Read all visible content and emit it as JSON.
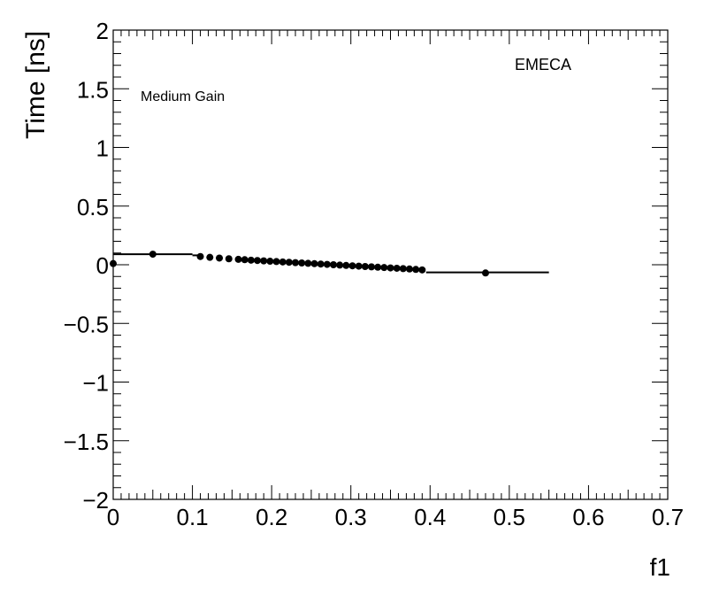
{
  "chart_data": {
    "type": "scatter",
    "title": "",
    "xlabel": "f1",
    "ylabel": "Time [ns]",
    "xlim": [
      0,
      0.7
    ],
    "ylim": [
      -2,
      2
    ],
    "x_ticks": [
      0,
      0.1,
      0.2,
      0.3,
      0.4,
      0.5,
      0.6,
      0.7
    ],
    "x_tick_labels": [
      "0",
      "0.1",
      "0.2",
      "0.3",
      "0.4",
      "0.5",
      "0.6",
      "0.7"
    ],
    "y_ticks": [
      -2,
      -1.5,
      -1,
      -0.5,
      0,
      0.5,
      1,
      1.5,
      2
    ],
    "y_tick_labels": [
      "−2",
      "−1.5",
      "−1",
      "−0.5",
      "0",
      "0.5",
      "1",
      "1.5",
      "2"
    ],
    "grid": false,
    "annotations": [
      {
        "text": "EMECA",
        "x": 0.51,
        "y": 1.68
      },
      {
        "text": "Medium Gain",
        "x": 0.033,
        "y": 1.41
      }
    ],
    "points": [
      {
        "x": 0.0,
        "y": 0.01
      },
      {
        "x": 0.05,
        "y": 0.09
      },
      {
        "x": 0.11,
        "y": 0.07
      },
      {
        "x": 0.122,
        "y": 0.063
      },
      {
        "x": 0.134,
        "y": 0.057
      },
      {
        "x": 0.146,
        "y": 0.051
      },
      {
        "x": 0.158,
        "y": 0.046
      },
      {
        "x": 0.166,
        "y": 0.043
      },
      {
        "x": 0.174,
        "y": 0.039
      },
      {
        "x": 0.182,
        "y": 0.036
      },
      {
        "x": 0.19,
        "y": 0.033
      },
      {
        "x": 0.198,
        "y": 0.03
      },
      {
        "x": 0.206,
        "y": 0.027
      },
      {
        "x": 0.214,
        "y": 0.024
      },
      {
        "x": 0.222,
        "y": 0.021
      },
      {
        "x": 0.23,
        "y": 0.018
      },
      {
        "x": 0.238,
        "y": 0.015
      },
      {
        "x": 0.246,
        "y": 0.012
      },
      {
        "x": 0.254,
        "y": 0.009
      },
      {
        "x": 0.262,
        "y": 0.006
      },
      {
        "x": 0.27,
        "y": 0.003
      },
      {
        "x": 0.278,
        "y": 0.0
      },
      {
        "x": 0.286,
        "y": -0.003
      },
      {
        "x": 0.294,
        "y": -0.006
      },
      {
        "x": 0.302,
        "y": -0.009
      },
      {
        "x": 0.31,
        "y": -0.012
      },
      {
        "x": 0.318,
        "y": -0.015
      },
      {
        "x": 0.326,
        "y": -0.018
      },
      {
        "x": 0.334,
        "y": -0.021
      },
      {
        "x": 0.342,
        "y": -0.024
      },
      {
        "x": 0.35,
        "y": -0.027
      },
      {
        "x": 0.358,
        "y": -0.03
      },
      {
        "x": 0.366,
        "y": -0.033
      },
      {
        "x": 0.374,
        "y": -0.036
      },
      {
        "x": 0.382,
        "y": -0.04
      },
      {
        "x": 0.39,
        "y": -0.044
      },
      {
        "x": 0.47,
        "y": -0.07
      }
    ],
    "segments": [
      {
        "x0": 0.0,
        "x1": 0.1,
        "y": 0.09
      },
      {
        "x0": 0.1,
        "x1": 0.11,
        "y": 0.08
      },
      {
        "x0": 0.395,
        "x1": 0.55,
        "y": -0.065
      }
    ]
  }
}
